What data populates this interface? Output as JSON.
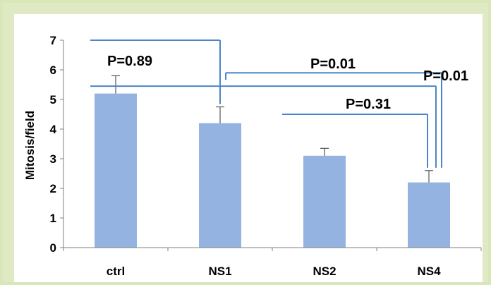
{
  "chart_data": {
    "type": "bar",
    "categories": [
      "ctrl",
      "NS1",
      "NS2",
      "NS4"
    ],
    "values": [
      5.2,
      4.2,
      3.1,
      2.2
    ],
    "errors": [
      0.6,
      0.55,
      0.25,
      0.4
    ],
    "ylabel": "Mitosis/field",
    "xlabel": "",
    "ylim": [
      0,
      7
    ],
    "yticks": [
      0,
      1,
      2,
      3,
      4,
      5,
      6,
      7
    ],
    "bar_color": "#95b3e0",
    "bracket_color": "#4a86c8",
    "comparisons": [
      {
        "from": "ctrl",
        "to": "NS1",
        "label": "P=0.89",
        "level": 7.0
      },
      {
        "from": "NS1",
        "to": "NS4",
        "label": "P=0.01",
        "level": 5.9
      },
      {
        "from": "ctrl",
        "to": "NS4",
        "label": "P=0.01",
        "level": 5.45
      },
      {
        "from": "NS2",
        "to": "NS4",
        "label": "P=0.31",
        "level": 4.5
      }
    ]
  }
}
